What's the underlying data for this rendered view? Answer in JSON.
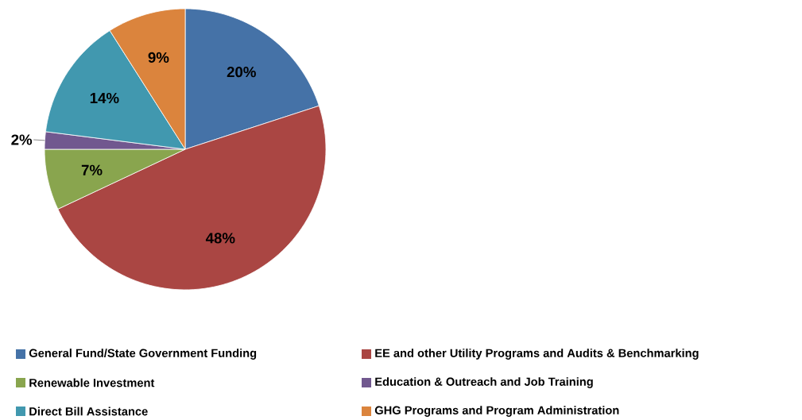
{
  "chart_data": {
    "type": "pie",
    "categories": [
      "General Fund/State Government Funding",
      "EE and other Utility Programs and Audits & Benchmarking",
      "Renewable Investment",
      "Education & Outreach and Job Training",
      "Direct Bill Assistance",
      "GHG Programs and Program Administration"
    ],
    "values": [
      20,
      48,
      7,
      2,
      14,
      9
    ],
    "value_labels": [
      "20%",
      "48%",
      "7%",
      "2%",
      "14%",
      "9%"
    ],
    "colors": [
      "#4572a7",
      "#aa4643",
      "#89a54e",
      "#71588f",
      "#4198af",
      "#db843d"
    ],
    "legend": "bottom"
  }
}
